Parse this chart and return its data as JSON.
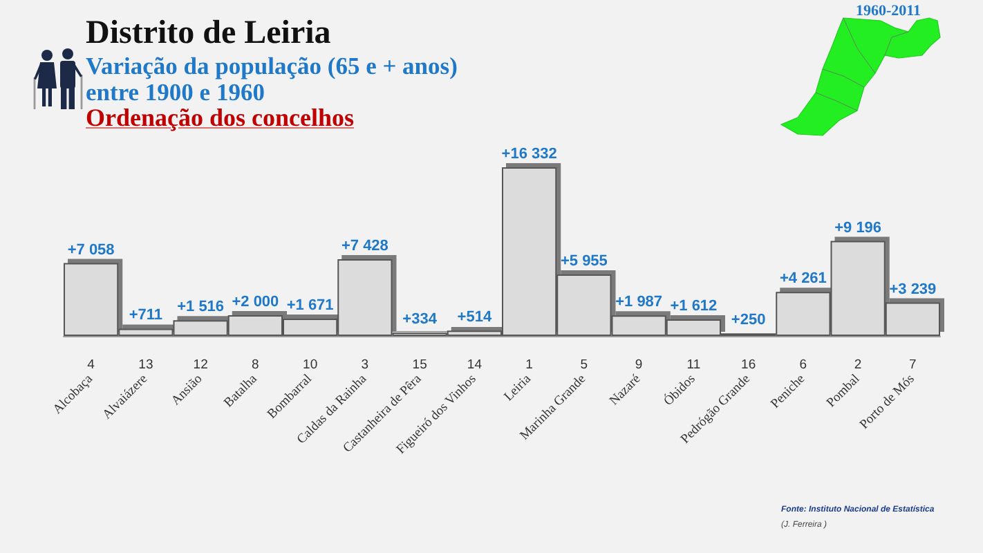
{
  "chart_data": {
    "type": "bar",
    "title": "Distrito de Leiria",
    "subtitle": "Variação da população (65 e + anos)\nentre 1900 e 1960",
    "categories": [
      "Alcobaça",
      "Alvaiázere",
      "Ansião",
      "Batalha",
      "Bombarral",
      "Caldas da Rainha",
      "Castanheira de Pêra",
      "Figueiró dos Vinhos",
      "Leiria",
      "Marinha Grande",
      "Nazaré",
      "Óbidos",
      "Pedrógão Grande",
      "Peniche",
      "Pombal",
      "Porto de Mós"
    ],
    "values": [
      7058,
      711,
      1516,
      2000,
      1671,
      7428,
      334,
      514,
      16332,
      5955,
      1987,
      1612,
      250,
      4261,
      9196,
      3239
    ],
    "color": "#dcdcdc",
    "value_labels": [
      "+7 058",
      "+711",
      "+1 516",
      "+2 000",
      "+1 671",
      "+7 428",
      "+334",
      "+514",
      "+16 332",
      "+5 955",
      "+1 987",
      "+1 612",
      "+250",
      "+4 261",
      "+9 196",
      "+3 239"
    ],
    "annotations": [
      "Ordenação dos concelhos",
      "1960-2011",
      "Fonte: Instituto Nacional de Estatística",
      "(J. Ferreira )",
      "4",
      "13",
      "12",
      "8",
      "10",
      "3",
      "15",
      "14",
      "1",
      "5",
      "9",
      "11",
      "16",
      "6",
      "2",
      "7"
    ]
  }
}
